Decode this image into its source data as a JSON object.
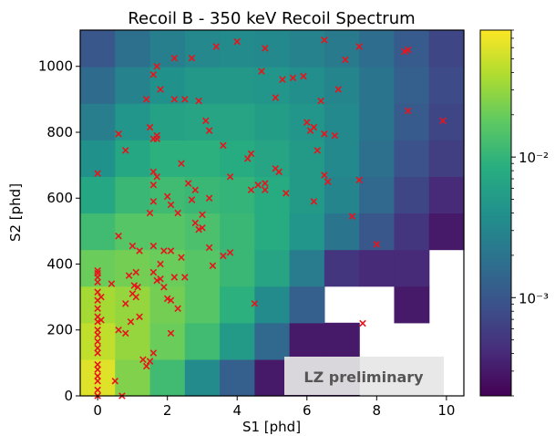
{
  "chart_data": {
    "type": "heatmap",
    "title": "Recoil B - 350 keV Recoil Spectrum",
    "xlabel": "S1 [phd]",
    "ylabel": "S2 [phd]",
    "xlim": [
      -0.5,
      10.5
    ],
    "ylim": [
      0,
      1110
    ],
    "xticks": [
      0,
      2,
      4,
      6,
      8,
      10
    ],
    "yticks": [
      0,
      200,
      400,
      600,
      800,
      1000
    ],
    "x_bin_edges": [
      -0.5,
      0.5,
      1.5,
      2.5,
      3.5,
      4.5,
      5.5,
      6.5,
      7.5,
      8.5,
      9.5,
      10.5
    ],
    "y_bin_edges": [
      0,
      111,
      222,
      333,
      444,
      555,
      666,
      777,
      888,
      999,
      1110
    ],
    "color_scale": "log",
    "colorbar_range": [
      0.0002,
      0.08
    ],
    "colorbar_ticks": [
      {
        "value": 0.001,
        "label": "10⁻³"
      },
      {
        "value": 0.01,
        "label": "10⁻²"
      }
    ],
    "z_rows_bottom_to_top": [
      [
        0.06,
        0.025,
        0.012,
        0.0035,
        0.0012,
        0.0003,
        0.0003,
        0.0003,
        null,
        null,
        null
      ],
      [
        0.045,
        0.03,
        0.02,
        0.012,
        0.005,
        0.0015,
        0.0003,
        0.0003,
        null,
        null,
        null
      ],
      [
        0.035,
        0.03,
        0.022,
        0.016,
        0.009,
        0.0035,
        0.0012,
        null,
        null,
        0.0003,
        null
      ],
      [
        0.02,
        0.022,
        0.02,
        0.016,
        0.011,
        0.0065,
        0.0024,
        0.0005,
        0.0004,
        0.0004,
        null
      ],
      [
        0.012,
        0.016,
        0.016,
        0.014,
        0.011,
        0.008,
        0.0045,
        0.002,
        0.001,
        0.0005,
        0.0003
      ],
      [
        0.007,
        0.011,
        0.012,
        0.011,
        0.01,
        0.008,
        0.005,
        0.003,
        0.0015,
        0.0007,
        0.0004
      ],
      [
        0.004,
        0.007,
        0.009,
        0.009,
        0.008,
        0.0065,
        0.005,
        0.0033,
        0.0018,
        0.0009,
        0.0006
      ],
      [
        0.0025,
        0.0045,
        0.006,
        0.0065,
        0.0065,
        0.0055,
        0.0045,
        0.0033,
        0.002,
        0.0011,
        0.0007
      ],
      [
        0.0016,
        0.0028,
        0.004,
        0.0048,
        0.0048,
        0.0045,
        0.0038,
        0.003,
        0.002,
        0.0012,
        0.0008
      ],
      [
        0.001,
        0.0018,
        0.0026,
        0.0032,
        0.0035,
        0.0033,
        0.0028,
        0.0023,
        0.0017,
        0.0011,
        0.0007
      ]
    ],
    "marker_color": "#e8141b",
    "events": [
      [
        0,
        0
      ],
      [
        0,
        18
      ],
      [
        0,
        45
      ],
      [
        0,
        60
      ],
      [
        0,
        80
      ],
      [
        0,
        95
      ],
      [
        0,
        130
      ],
      [
        0,
        145
      ],
      [
        0,
        165
      ],
      [
        0,
        185
      ],
      [
        0,
        200
      ],
      [
        0,
        225
      ],
      [
        0,
        240
      ],
      [
        0,
        265
      ],
      [
        0,
        290
      ],
      [
        0,
        315
      ],
      [
        0,
        345
      ],
      [
        0,
        360
      ],
      [
        0,
        372
      ],
      [
        0,
        380
      ],
      [
        0.1,
        230
      ],
      [
        0.1,
        300
      ],
      [
        0.4,
        340
      ],
      [
        0.5,
        45
      ],
      [
        0.6,
        200
      ],
      [
        0.7,
        0
      ],
      [
        0.8,
        190
      ],
      [
        0.8,
        280
      ],
      [
        0.9,
        365
      ],
      [
        0.95,
        225
      ],
      [
        1.0,
        455
      ],
      [
        1.0,
        310
      ],
      [
        1.05,
        335
      ],
      [
        1.1,
        375
      ],
      [
        1.1,
        300
      ],
      [
        1.15,
        330
      ],
      [
        1.2,
        240
      ],
      [
        1.3,
        110
      ],
      [
        1.4,
        90
      ],
      [
        1.5,
        105
      ],
      [
        1.6,
        130
      ],
      [
        1.6,
        375
      ],
      [
        1.7,
        350
      ],
      [
        1.8,
        355
      ],
      [
        1.9,
        330
      ],
      [
        2.0,
        295
      ],
      [
        2.1,
        290
      ],
      [
        2.2,
        360
      ],
      [
        2.3,
        265
      ],
      [
        2.4,
        420
      ],
      [
        2.5,
        360
      ],
      [
        1.8,
        400
      ],
      [
        1.6,
        455
      ],
      [
        1.9,
        440
      ],
      [
        2.1,
        440
      ],
      [
        1.2,
        440
      ],
      [
        2.1,
        190
      ],
      [
        1.6,
        590
      ],
      [
        2.1,
        580
      ],
      [
        1.5,
        555
      ],
      [
        1.6,
        640
      ],
      [
        1.7,
        665
      ],
      [
        1.6,
        680
      ],
      [
        2.0,
        605
      ],
      [
        2.3,
        555
      ],
      [
        2.4,
        705
      ],
      [
        2.6,
        645
      ],
      [
        2.8,
        625
      ],
      [
        2.7,
        595
      ],
      [
        3.0,
        550
      ],
      [
        3.2,
        450
      ],
      [
        3.6,
        425
      ],
      [
        3.3,
        395
      ],
      [
        3.8,
        435
      ],
      [
        3.0,
        510
      ],
      [
        3.2,
        600
      ],
      [
        2.8,
        525
      ],
      [
        2.9,
        505
      ],
      [
        0.6,
        485
      ],
      [
        0.8,
        745
      ],
      [
        0.0,
        675
      ],
      [
        0.6,
        795
      ],
      [
        1.5,
        815
      ],
      [
        1.6,
        780
      ],
      [
        1.7,
        790
      ],
      [
        1.7,
        780
      ],
      [
        2.9,
        895
      ],
      [
        3.1,
        835
      ],
      [
        3.2,
        805
      ],
      [
        1.4,
        900
      ],
      [
        1.8,
        930
      ],
      [
        1.7,
        1000
      ],
      [
        2.2,
        900
      ],
      [
        2.5,
        900
      ],
      [
        2.2,
        1025
      ],
      [
        2.7,
        1025
      ],
      [
        1.6,
        975
      ],
      [
        3.4,
        1060
      ],
      [
        4.0,
        1075
      ],
      [
        4.8,
        1055
      ],
      [
        3.6,
        760
      ],
      [
        3.8,
        665
      ],
      [
        4.3,
        720
      ],
      [
        4.4,
        735
      ],
      [
        4.6,
        640
      ],
      [
        4.4,
        625
      ],
      [
        4.8,
        625
      ],
      [
        4.8,
        645
      ],
      [
        5.1,
        690
      ],
      [
        5.2,
        680
      ],
      [
        5.4,
        615
      ],
      [
        6.3,
        745
      ],
      [
        6.0,
        830
      ],
      [
        6.2,
        815
      ],
      [
        6.1,
        805
      ],
      [
        6.5,
        795
      ],
      [
        6.8,
        790
      ],
      [
        6.2,
        590
      ],
      [
        6.5,
        670
      ],
      [
        6.6,
        650
      ],
      [
        6.4,
        895
      ],
      [
        6.9,
        930
      ],
      [
        5.9,
        970
      ],
      [
        5.6,
        965
      ],
      [
        5.1,
        905
      ],
      [
        5.3,
        960
      ],
      [
        4.7,
        985
      ],
      [
        6.5,
        1080
      ],
      [
        7.1,
        1020
      ],
      [
        7.5,
        1060
      ],
      [
        7.5,
        655
      ],
      [
        7.3,
        545
      ],
      [
        8.0,
        460
      ],
      [
        8.8,
        1045
      ],
      [
        8.9,
        1050
      ],
      [
        8.9,
        865
      ],
      [
        9.9,
        835
      ],
      [
        4.5,
        280
      ],
      [
        7.6,
        220
      ]
    ],
    "watermark": "LZ preliminary"
  }
}
